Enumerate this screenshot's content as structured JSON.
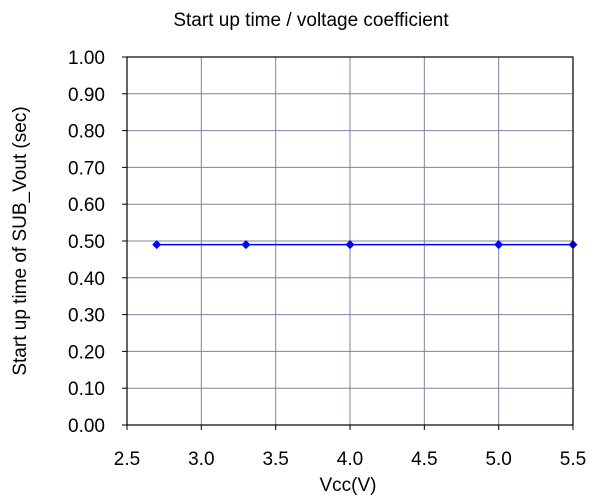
{
  "chart_data": {
    "type": "line",
    "title": "Start up time  / voltage coefficient",
    "xlabel": "Vcc(V)",
    "ylabel": "Start up time of  SUB_Vout (sec)",
    "xlim": [
      2.5,
      5.5
    ],
    "ylim": [
      0.0,
      1.0
    ],
    "x_ticks": [
      "2.5",
      "3.0",
      "3.5",
      "4.0",
      "4.5",
      "5.0",
      "5.5"
    ],
    "y_ticks": [
      "1.00",
      "0.90",
      "0.80",
      "0.70",
      "0.60",
      "0.50",
      "0.40",
      "0.30",
      "0.20",
      "0.10",
      "0.00"
    ],
    "grid": true,
    "series": [
      {
        "x": [
          2.7,
          3.3,
          4.0,
          5.0,
          5.5
        ],
        "y": [
          0.49,
          0.49,
          0.49,
          0.49,
          0.49
        ],
        "color": "#0000ff",
        "marker": "diamond"
      }
    ]
  }
}
